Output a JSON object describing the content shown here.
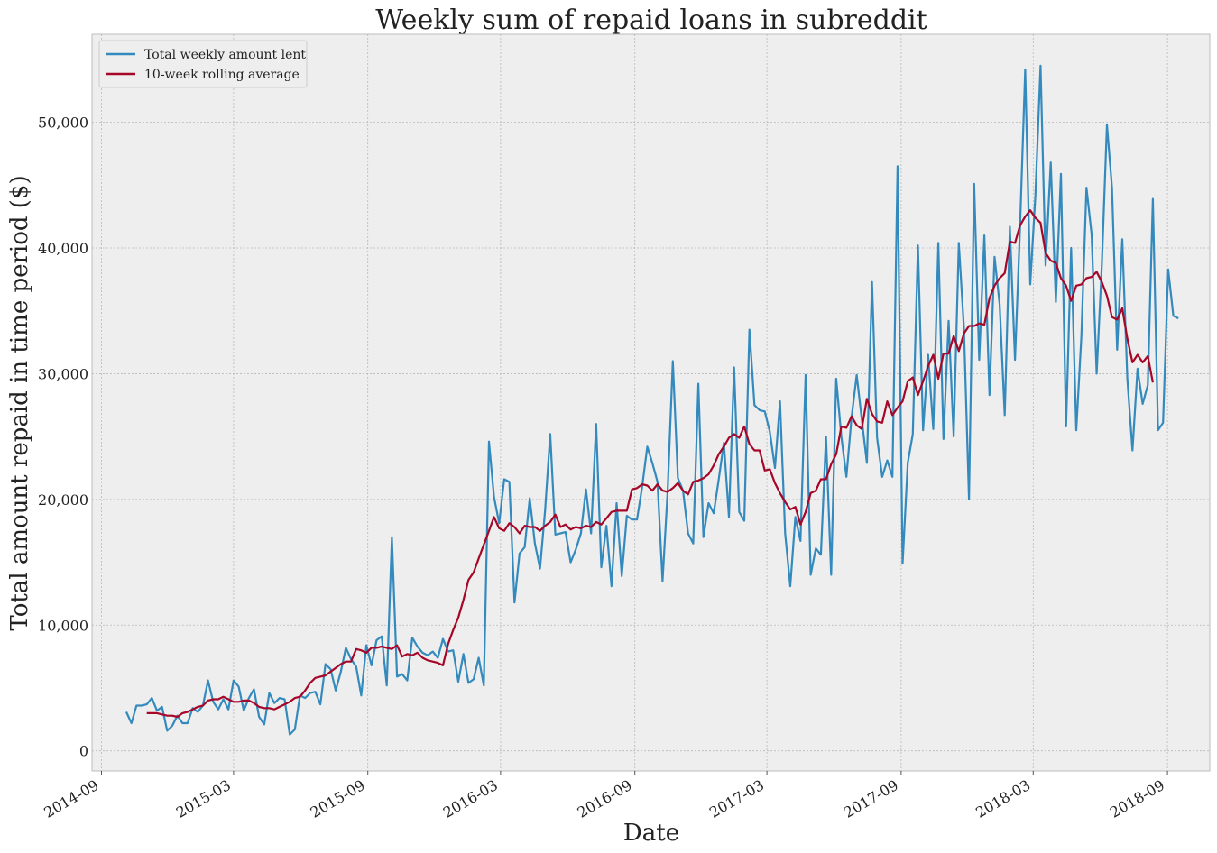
{
  "chart_data": {
    "type": "line",
    "title": "Weekly sum of repaid loans in subreddit",
    "xlabel": "Date",
    "ylabel": "Total amount repaid in time period ($)",
    "x_start": "2014-10-05",
    "x_step_days": 7,
    "xlim": [
      "2014-08-19",
      "2018-10-29"
    ],
    "ylim": [
      -1600,
      57000
    ],
    "x_ticks": [
      {
        "date": "2014-09-01",
        "label": "2014-09"
      },
      {
        "date": "2015-03-01",
        "label": "2015-03"
      },
      {
        "date": "2015-09-01",
        "label": "2015-09"
      },
      {
        "date": "2016-03-01",
        "label": "2016-03"
      },
      {
        "date": "2016-09-01",
        "label": "2016-09"
      },
      {
        "date": "2017-03-01",
        "label": "2017-03"
      },
      {
        "date": "2017-09-01",
        "label": "2017-09"
      },
      {
        "date": "2018-03-01",
        "label": "2018-03"
      },
      {
        "date": "2018-09-01",
        "label": "2018-09"
      }
    ],
    "y_ticks": [
      {
        "value": 0,
        "label": "0"
      },
      {
        "value": 10000,
        "label": "10,000"
      },
      {
        "value": 20000,
        "label": "20,000"
      },
      {
        "value": 30000,
        "label": "30,000"
      },
      {
        "value": 40000,
        "label": "40,000"
      },
      {
        "value": 50000,
        "label": "50,000"
      }
    ],
    "grid": true,
    "legend_position": "top-left",
    "series": [
      {
        "name": "Total weekly amount lent",
        "color": "#348ABD",
        "values": [
          3100,
          2200,
          3600,
          3600,
          3700,
          4200,
          3200,
          3500,
          1600,
          2000,
          2800,
          2200,
          2200,
          3400,
          3100,
          3600,
          5600,
          3900,
          3300,
          4100,
          3300,
          5600,
          5100,
          3200,
          4200,
          4900,
          2700,
          2100,
          4600,
          3800,
          4200,
          4100,
          1300,
          1700,
          4400,
          4200,
          4600,
          4700,
          3700,
          6900,
          6500,
          4800,
          6300,
          8200,
          7300,
          6700,
          4400,
          8400,
          6800,
          8800,
          9100,
          5200,
          17000,
          5900,
          6100,
          5600,
          9000,
          8300,
          7800,
          7600,
          7900,
          7400,
          8900,
          7900,
          8000,
          5500,
          7700,
          5400,
          5700,
          7400,
          5200,
          24600,
          20200,
          18100,
          21600,
          21400,
          11800,
          15700,
          16200,
          20100,
          16500,
          14500,
          19100,
          25200,
          17200,
          17300,
          17400,
          15000,
          16000,
          17300,
          20800,
          17300,
          26000,
          14600,
          17900,
          13100,
          19700,
          13900,
          18700,
          18400,
          18400,
          21000,
          24200,
          22900,
          21400,
          13500,
          20700,
          31000,
          21700,
          20700,
          17300,
          16500,
          29200,
          17000,
          19700,
          18900,
          21600,
          24500,
          18600,
          30500,
          19000,
          18300,
          33500,
          27500,
          27100,
          27000,
          25400,
          22500,
          27800,
          17300,
          13100,
          18600,
          16700,
          29900,
          14000,
          16100,
          15600,
          25000,
          14000,
          29600,
          25000,
          21800,
          26500,
          29900,
          26400,
          22900,
          37300,
          24900,
          21800,
          23100,
          21800,
          46500,
          14900,
          22900,
          25200,
          40200,
          25500,
          31500,
          25600,
          40400,
          24800,
          34200,
          25000,
          40400,
          33600,
          20000,
          45100,
          31100,
          41000,
          28300,
          39300,
          35500,
          26700,
          41700,
          31100,
          41700,
          54200,
          37100,
          44200,
          54500,
          38600,
          46800,
          35700,
          45900,
          25800,
          40000,
          25500,
          33000,
          44800,
          41100,
          30000,
          38600,
          49800,
          44800,
          31900,
          40700,
          29600,
          23900,
          30400,
          27600,
          29100,
          43900,
          25500,
          26100,
          38300,
          34600,
          34400
        ]
      },
      {
        "name": "10-week rolling average",
        "color": "#A60628",
        "start_index": 4,
        "values": [
          3000,
          3000,
          3000,
          2900,
          2800,
          2800,
          2700,
          3000,
          3100,
          3300,
          3500,
          3600,
          4000,
          4100,
          4100,
          4300,
          4100,
          3900,
          3900,
          4000,
          4000,
          3800,
          3500,
          3400,
          3400,
          3300,
          3500,
          3700,
          3900,
          4200,
          4300,
          4800,
          5400,
          5800,
          5900,
          6000,
          6300,
          6600,
          6900,
          7100,
          7100,
          8100,
          8000,
          7800,
          8200,
          8200,
          8300,
          8200,
          8100,
          8400,
          7500,
          7700,
          7600,
          7800,
          7400,
          7200,
          7100,
          7000,
          6800,
          8500,
          9600,
          10600,
          12000,
          13600,
          14200,
          15300,
          16400,
          17500,
          18600,
          17700,
          17500,
          18100,
          17800,
          17300,
          17900,
          17800,
          17800,
          17500,
          17900,
          18200,
          18800,
          17800,
          18000,
          17600,
          17800,
          17700,
          17900,
          17800,
          18200,
          18000,
          18500,
          19000,
          19100,
          19100,
          19100,
          20800,
          20900,
          21200,
          21100,
          20700,
          21200,
          20700,
          20600,
          20900,
          21300,
          20700,
          20400,
          21400,
          21500,
          21700,
          22000,
          22700,
          23600,
          24200,
          24900,
          25200,
          24900,
          25800,
          24400,
          23900,
          23900,
          22300,
          22400,
          21300,
          20500,
          19800,
          19200,
          19400,
          18000,
          19000,
          20500,
          20700,
          21600,
          21600,
          22800,
          23600,
          25800,
          25700,
          26600,
          25900,
          25600,
          28000,
          26800,
          26200,
          26100,
          27800,
          26700,
          27300,
          27800,
          29400,
          29700,
          28300,
          29400,
          30600,
          31500,
          29600,
          31600,
          31600,
          33000,
          31800,
          33200,
          33800,
          33800,
          34000,
          33900,
          36000,
          37000,
          37600,
          38000,
          40500,
          40400,
          41800,
          42500,
          43000,
          42400,
          42000,
          39600,
          39000,
          38800,
          37600,
          37000,
          35800,
          37000,
          37100,
          37600,
          37700,
          38100,
          37300,
          36200,
          34500,
          34300,
          35200,
          32800,
          30900,
          31500,
          30900,
          31400,
          29300
        ]
      }
    ]
  }
}
